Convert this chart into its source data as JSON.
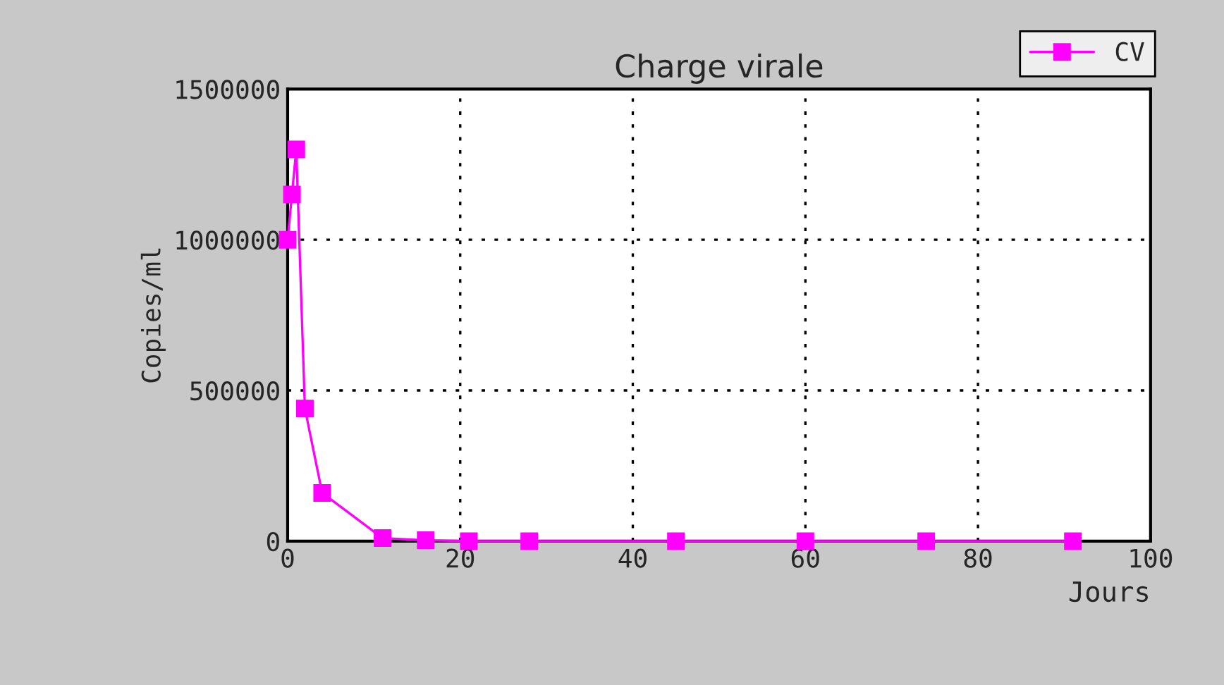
{
  "chart_data": {
    "type": "line",
    "title": "Charge virale",
    "xlabel": "Jours",
    "ylabel": "Copies/ml",
    "x": [
      0,
      0.5,
      1,
      2,
      4,
      11,
      16,
      21,
      28,
      45,
      60,
      74,
      91
    ],
    "series": [
      {
        "name": "CV",
        "color": "#ff00ff",
        "values": [
          1000000,
          1150000,
          1300000,
          440000,
          160000,
          10000,
          3000,
          0,
          0,
          0,
          0,
          0,
          0
        ]
      }
    ],
    "xlim": [
      0,
      100
    ],
    "xticks": [
      0,
      20,
      40,
      60,
      80,
      100
    ],
    "ylim": [
      0,
      1500000
    ],
    "yticks": [
      0,
      500000,
      1000000,
      1500000
    ],
    "grid": true,
    "legend": "top right",
    "marker": "square",
    "line_style": "solid"
  }
}
